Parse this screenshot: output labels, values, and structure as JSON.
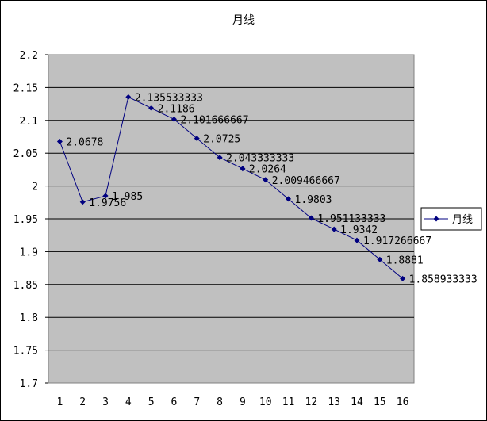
{
  "chart_data": {
    "type": "line",
    "title": "月线",
    "xlabel": "",
    "ylabel": "",
    "categories": [
      "1",
      "2",
      "3",
      "4",
      "5",
      "6",
      "7",
      "8",
      "9",
      "10",
      "11",
      "12",
      "13",
      "14",
      "15",
      "16"
    ],
    "ylim": [
      1.7,
      2.2
    ],
    "yticks": [
      "2.2",
      "2.15",
      "2.1",
      "2.05",
      "2",
      "1.95",
      "1.9",
      "1.85",
      "1.8",
      "1.75",
      "1.7"
    ],
    "ytick_values": [
      2.2,
      2.15,
      2.1,
      2.05,
      2.0,
      1.95,
      1.9,
      1.85,
      1.8,
      1.75,
      1.7
    ],
    "grid": true,
    "legend_position": "right",
    "series": [
      {
        "name": "月线",
        "color": "#000080",
        "values": [
          2.0678,
          1.9756,
          1.985,
          2.135533333,
          2.1186,
          2.101666667,
          2.0725,
          2.043333333,
          2.0264,
          2.009466667,
          1.9803,
          1.951133333,
          1.9342,
          1.917266667,
          1.8881,
          1.858933333
        ],
        "labels": [
          "2.0678",
          "1.9756",
          "1.985",
          "2.135533333",
          "2.1186",
          "2.101666667",
          "2.0725",
          "2.043333333",
          "2.0264",
          "2.009466667",
          "1.9803",
          "1.951133333",
          "1.9342",
          "1.917266667",
          "1.8881",
          "1.858933333"
        ]
      }
    ],
    "plot_background": "#c0c0c0"
  }
}
